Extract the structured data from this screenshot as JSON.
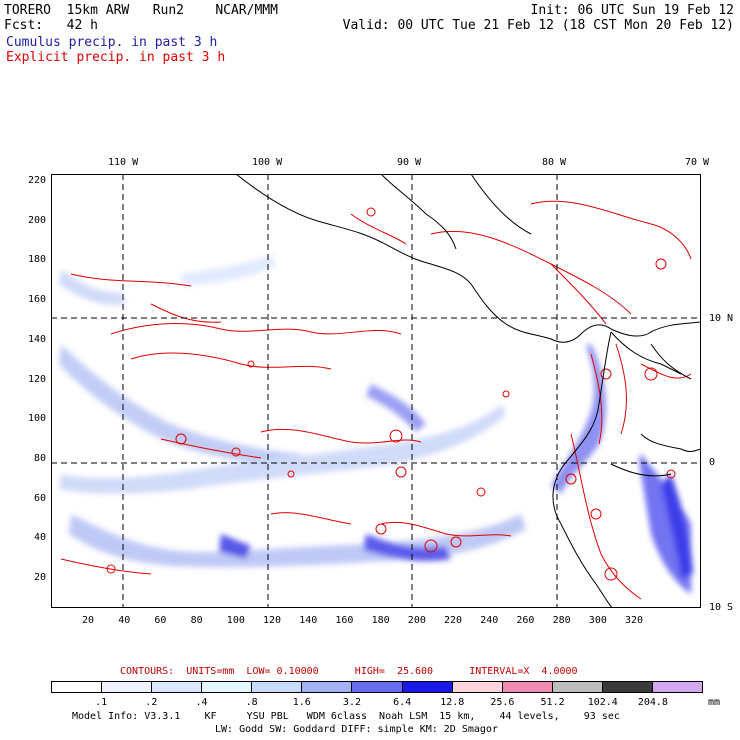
{
  "header": {
    "model": "TORERO  15km ARW   Run2    NCAR/MMM",
    "init": "Init: 06 UTC Sun 19 Feb 12",
    "fcst": "Fcst:   42 h",
    "valid": "Valid: 00 UTC Tue 21 Feb 12 (18 CST Mon 20 Feb 12)",
    "field_cumulus": "Cumulus precip. in past 3 h",
    "field_explicit": "Explicit precip. in past 3 h",
    "color_cumulus": "#2020a0",
    "color_explicit": "#e00000"
  },
  "axes": {
    "lon_labels": [
      "110 W",
      "100 W",
      "90 W",
      "80 W",
      "70 W"
    ],
    "lat_labels": [
      "10 N",
      "0",
      "10 S"
    ],
    "x_ticks": [
      "20",
      "40",
      "60",
      "80",
      "100",
      "120",
      "140",
      "160",
      "180",
      "200",
      "220",
      "240",
      "260",
      "280",
      "300",
      "320"
    ],
    "y_ticks": [
      "220",
      "200",
      "180",
      "160",
      "140",
      "120",
      "100",
      "80",
      "60",
      "40",
      "20"
    ]
  },
  "contours_line": "CONTOURS:  UNITS=mm  LOW= 0.10000      HIGH=  25.600      INTERVAL=X  4.0000",
  "colorbar": {
    "labels": [
      ".1",
      ".2",
      ".4",
      ".8",
      "1.6",
      "3.2",
      "6.4",
      "12.8",
      "25.6",
      "51.2",
      "102.4",
      "204.8"
    ],
    "unit": "mm",
    "colors": [
      "#ffffff",
      "#eef3ff",
      "#dce8ff",
      "#e6f8ff",
      "#c8dcff",
      "#a4b0f4",
      "#6a6cf0",
      "#1a1ae6",
      "#ffd4dc",
      "#f08cb4",
      "#bcbcbc",
      "#3a3a3a",
      "#d4a8f0"
    ]
  },
  "footer": {
    "line1": "Model Info: V3.3.1    KF     YSU PBL   WDM 6class  Noah LSM  15 km,    44 levels,    93 sec",
    "line2": "LW: Godd SW: Goddard DIFF: simple KM: 2D Smagor"
  }
}
